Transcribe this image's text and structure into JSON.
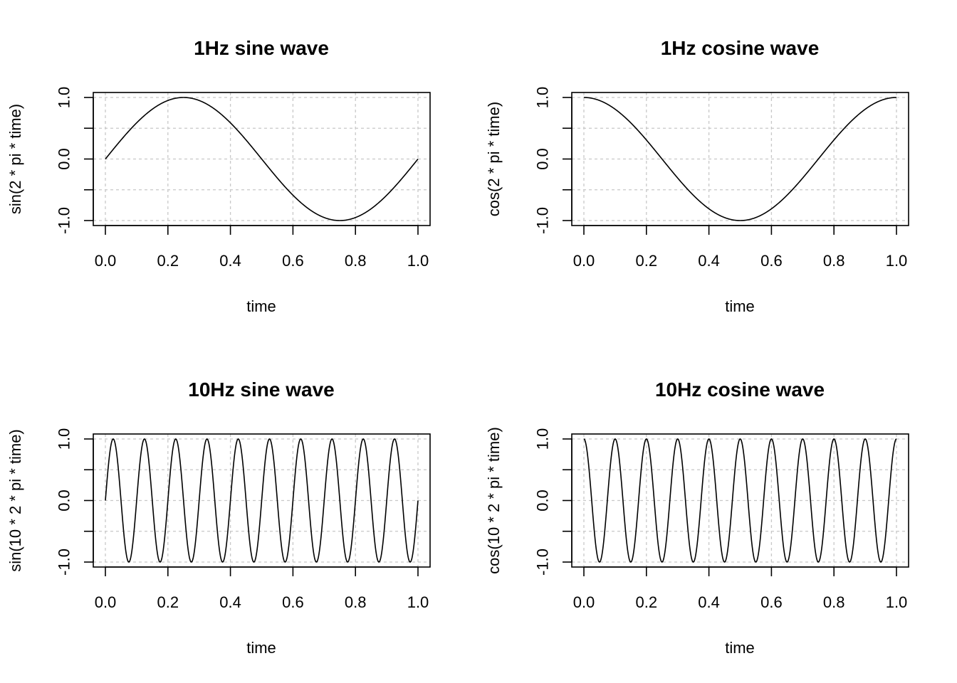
{
  "chart_data": [
    {
      "type": "line",
      "title": "1Hz sine wave",
      "xlabel": "time",
      "ylabel": "sin(2 * pi * time)",
      "function": "sin",
      "frequency_hz": 1,
      "x_range": [
        0,
        1
      ],
      "xlim": [
        0,
        1
      ],
      "ylim": [
        -1,
        1
      ],
      "x_ticks": [
        0,
        0.2,
        0.4,
        0.6,
        0.8,
        1
      ],
      "x_tick_labels": [
        "0.0",
        "0.2",
        "0.4",
        "0.6",
        "0.8",
        "1.0"
      ],
      "y_ticks": [
        -1,
        -0.5,
        0,
        0.5,
        1
      ],
      "y_tick_labels": [
        "-1.0",
        "",
        "0.0",
        "",
        "1.0"
      ],
      "grid": true,
      "line_color": "#000000",
      "grid_color": "#c8c8c8"
    },
    {
      "type": "line",
      "title": "1Hz cosine wave",
      "xlabel": "time",
      "ylabel": "cos(2 * pi * time)",
      "function": "cos",
      "frequency_hz": 1,
      "x_range": [
        0,
        1
      ],
      "xlim": [
        0,
        1
      ],
      "ylim": [
        -1,
        1
      ],
      "x_ticks": [
        0,
        0.2,
        0.4,
        0.6,
        0.8,
        1
      ],
      "x_tick_labels": [
        "0.0",
        "0.2",
        "0.4",
        "0.6",
        "0.8",
        "1.0"
      ],
      "y_ticks": [
        -1,
        -0.5,
        0,
        0.5,
        1
      ],
      "y_tick_labels": [
        "-1.0",
        "",
        "0.0",
        "",
        "1.0"
      ],
      "grid": true,
      "line_color": "#000000",
      "grid_color": "#c8c8c8"
    },
    {
      "type": "line",
      "title": "10Hz sine wave",
      "xlabel": "time",
      "ylabel": "sin(10 * 2 * pi * time)",
      "function": "sin",
      "frequency_hz": 10,
      "x_range": [
        0,
        1
      ],
      "xlim": [
        0,
        1
      ],
      "ylim": [
        -1,
        1
      ],
      "x_ticks": [
        0,
        0.2,
        0.4,
        0.6,
        0.8,
        1
      ],
      "x_tick_labels": [
        "0.0",
        "0.2",
        "0.4",
        "0.6",
        "0.8",
        "1.0"
      ],
      "y_ticks": [
        -1,
        -0.5,
        0,
        0.5,
        1
      ],
      "y_tick_labels": [
        "-1.0",
        "",
        "0.0",
        "",
        "1.0"
      ],
      "grid": true,
      "line_color": "#000000",
      "grid_color": "#c8c8c8"
    },
    {
      "type": "line",
      "title": "10Hz cosine wave",
      "xlabel": "time",
      "ylabel": "cos(10 * 2 * pi * time)",
      "function": "cos",
      "frequency_hz": 10,
      "x_range": [
        0,
        1
      ],
      "xlim": [
        0,
        1
      ],
      "ylim": [
        -1,
        1
      ],
      "x_ticks": [
        0,
        0.2,
        0.4,
        0.6,
        0.8,
        1
      ],
      "x_tick_labels": [
        "0.0",
        "0.2",
        "0.4",
        "0.6",
        "0.8",
        "1.0"
      ],
      "y_ticks": [
        -1,
        -0.5,
        0,
        0.5,
        1
      ],
      "y_tick_labels": [
        "-1.0",
        "",
        "0.0",
        "",
        "1.0"
      ],
      "grid": true,
      "line_color": "#000000",
      "grid_color": "#c8c8c8"
    }
  ]
}
